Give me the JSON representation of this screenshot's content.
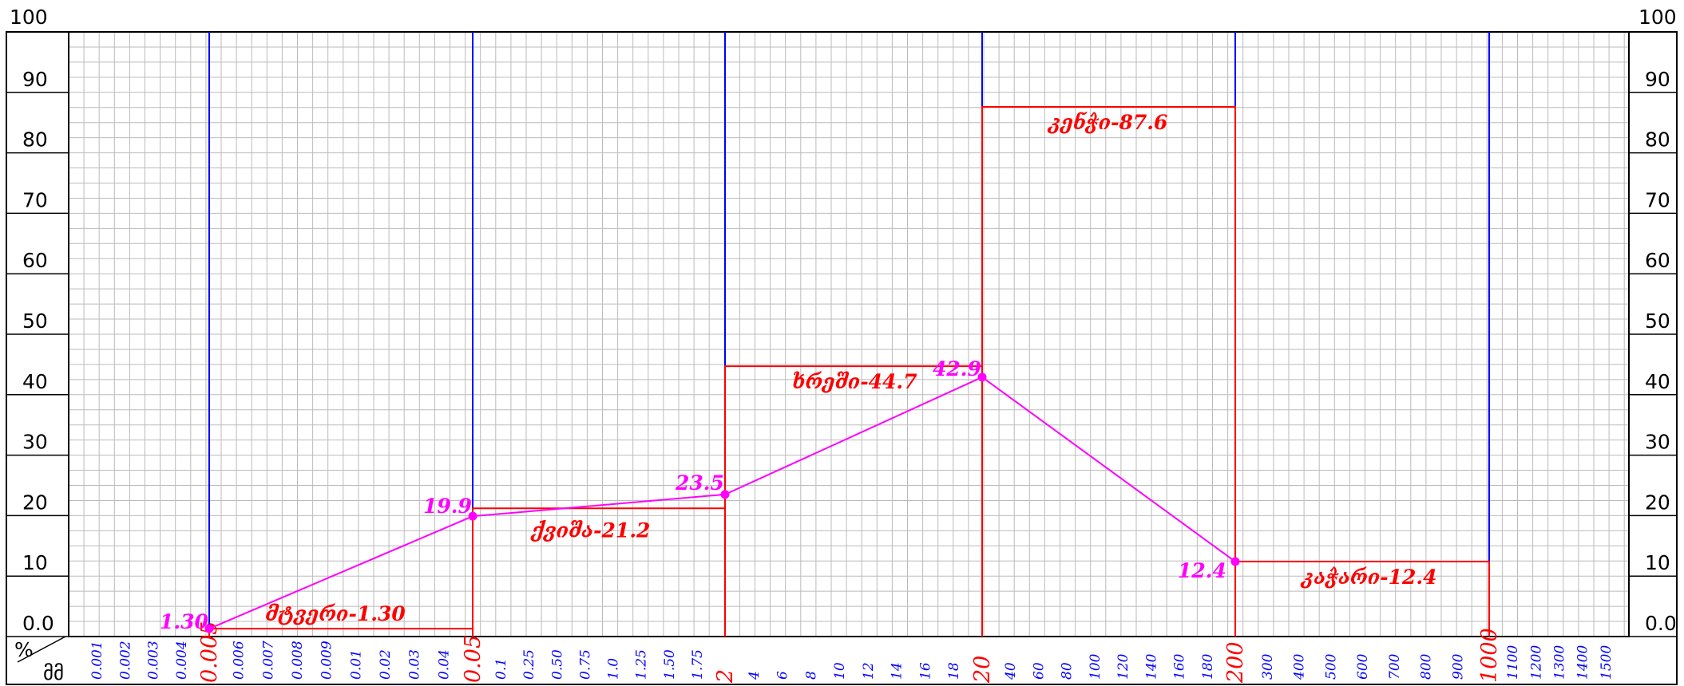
{
  "chart_data": {
    "type": "line",
    "y_axis": {
      "ticks": [
        "0.0",
        "10",
        "20",
        "30",
        "40",
        "50",
        "60",
        "70",
        "80",
        "90",
        "100"
      ],
      "ylim": [
        0,
        100
      ]
    },
    "x_axis": {
      "groups": [
        {
          "ticks": [
            "0.001",
            "0.002",
            "0.003",
            "0.004"
          ]
        },
        {
          "ticks": [
            "0.005",
            "0.006",
            "0.007",
            "0.008",
            "0.009",
            "0.01",
            "0.02",
            "0.03",
            "0.04"
          ]
        },
        {
          "ticks": [
            "0.05",
            "0.1",
            "0.25",
            "0.50",
            "0.75",
            "1.0",
            "1.25",
            "1.50",
            "1.75"
          ]
        },
        {
          "ticks": [
            "2",
            "4",
            "6",
            "8",
            "10",
            "12",
            "14",
            "16",
            "18"
          ]
        },
        {
          "ticks": [
            "20",
            "40",
            "60",
            "80",
            "100",
            "120",
            "140",
            "160",
            "180"
          ]
        },
        {
          "ticks": [
            "200",
            "300",
            "400",
            "500",
            "600",
            "700",
            "800",
            "900"
          ]
        },
        {
          "ticks": [
            "1000",
            "1100",
            "1200",
            "1300",
            "1400",
            "1500"
          ]
        }
      ],
      "boundaries": [
        "0.005",
        "0.05",
        "2",
        "20",
        "200",
        "1000"
      ]
    },
    "corner": {
      "top": "%",
      "bottom": "მმ"
    },
    "fractions": [
      {
        "label": "მტვერი-1.30",
        "from": "0.005",
        "to": "0.05",
        "value": 1.3
      },
      {
        "label": "ქვიშა-21.2",
        "from": "0.05",
        "to": "2",
        "value": 21.2
      },
      {
        "label": "ხრეში-44.7",
        "from": "2",
        "to": "20",
        "value": 44.7
      },
      {
        "label": "კენჭი-87.6",
        "from": "20",
        "to": "200",
        "value": 87.6
      },
      {
        "label": "კაჭარი-12.4",
        "from": "200",
        "to": "1000",
        "value": 12.4
      }
    ],
    "series": [
      {
        "x": [
          "0.005",
          "0.05",
          "2",
          "20",
          "200"
        ],
        "y": [
          1.3,
          19.9,
          23.5,
          42.9,
          12.4
        ],
        "labels": [
          "1.30",
          "19.9",
          "23.5",
          "42.9",
          "12.4"
        ]
      }
    ],
    "colors": {
      "grid": "#bbbbbb",
      "boundary": "#0000ff",
      "fraction": "#ff0000",
      "curve": "#ff00ff",
      "tick_minor": "#0000ff",
      "tick_major": "#ff0000",
      "frame": "#000000"
    }
  }
}
